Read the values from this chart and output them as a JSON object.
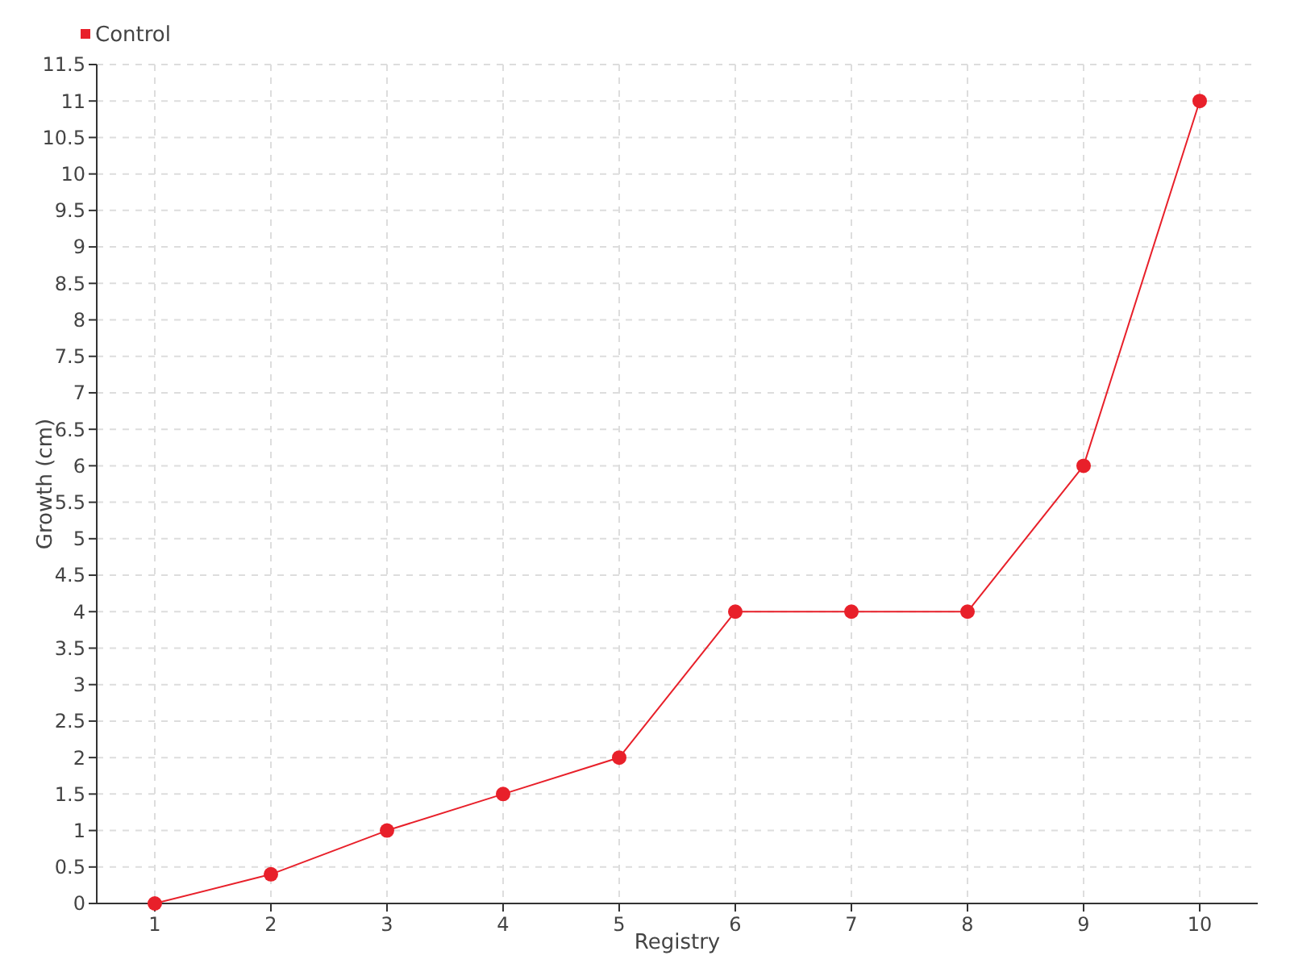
{
  "chart_data": {
    "type": "line",
    "xlabel": "Registry",
    "ylabel": "Growth (cm)",
    "categories": [
      "1",
      "2",
      "3",
      "4",
      "5",
      "6",
      "7",
      "8",
      "9",
      "10"
    ],
    "series": [
      {
        "name": "Control",
        "color": "#e8202a",
        "values": [
          0,
          0.4,
          1,
          1.5,
          2,
          4,
          4,
          4,
          6,
          11
        ]
      }
    ],
    "ylim": [
      0,
      11.5
    ],
    "yticks": [
      0,
      0.5,
      1,
      1.5,
      2,
      2.5,
      3,
      3.5,
      4,
      4.5,
      5,
      5.5,
      6,
      6.5,
      7,
      7.5,
      8,
      8.5,
      9,
      9.5,
      10,
      10.5,
      11,
      11.5
    ],
    "grid": true,
    "legend": "top left",
    "marker": "circle",
    "line_style": "solid"
  }
}
